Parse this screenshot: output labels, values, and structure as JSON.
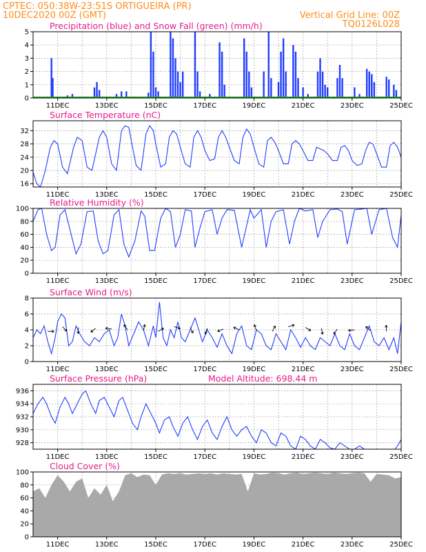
{
  "header": {
    "line1_left": "CPTEC:   050:38W-23:51S   ORTIGUEIRA (PR)",
    "line2_left": "10DEC2020 00Z (GMT)",
    "line2_right": "Vertical Grid Line: 00Z",
    "line3_right": "TQ0126L028"
  },
  "colors": {
    "precip": "#1f3cff",
    "snow": "#1aa51a",
    "line": "#1f3cff",
    "cloud": "#a9a9a9",
    "title": "#e8198b",
    "header": "#ff8c1a"
  },
  "x_axis": {
    "labels": [
      "11DEC",
      "13DEC",
      "15DEC",
      "17DEC",
      "19DEC",
      "21DEC",
      "23DEC",
      "25DEC"
    ],
    "label_days": [
      11,
      13,
      15,
      17,
      19,
      21,
      23,
      25
    ],
    "range_days": [
      10,
      25
    ],
    "gridline_days": [
      11,
      12,
      13,
      14,
      15,
      16,
      17,
      18,
      19,
      20,
      21,
      22,
      23,
      24
    ]
  },
  "chart_data": [
    {
      "type": "bar",
      "title": "Precipitation (blue) and Snow Fall (green) (mm/h)",
      "ylim": [
        0,
        5
      ],
      "yticks": [
        0,
        1,
        2,
        3,
        4,
        5
      ],
      "series": [
        {
          "name": "Precipitation",
          "values": [
            [
              10.75,
              3.0
            ],
            [
              10.8,
              1.5
            ],
            [
              11.4,
              0.2
            ],
            [
              11.6,
              0.3
            ],
            [
              12.05,
              0.1
            ],
            [
              12.5,
              0.8
            ],
            [
              12.6,
              1.2
            ],
            [
              12.7,
              0.6
            ],
            [
              13.4,
              0.3
            ],
            [
              13.6,
              0.5
            ],
            [
              13.8,
              0.5
            ],
            [
              14.7,
              0.4
            ],
            [
              14.8,
              5.0
            ],
            [
              14.9,
              3.5
            ],
            [
              15.0,
              0.8
            ],
            [
              15.1,
              0.5
            ],
            [
              15.6,
              5.0
            ],
            [
              15.7,
              4.5
            ],
            [
              15.8,
              3.0
            ],
            [
              15.9,
              2.0
            ],
            [
              16.0,
              1.2
            ],
            [
              16.1,
              2.0
            ],
            [
              16.6,
              5.0
            ],
            [
              16.7,
              2.0
            ],
            [
              16.8,
              0.5
            ],
            [
              17.2,
              0.3
            ],
            [
              17.6,
              4.2
            ],
            [
              17.7,
              3.5
            ],
            [
              17.8,
              1.0
            ],
            [
              18.6,
              4.5
            ],
            [
              18.7,
              3.5
            ],
            [
              18.8,
              2.0
            ],
            [
              18.9,
              0.8
            ],
            [
              19.4,
              2.0
            ],
            [
              19.6,
              5.0
            ],
            [
              19.7,
              1.5
            ],
            [
              20.0,
              1.2
            ],
            [
              20.1,
              3.5
            ],
            [
              20.2,
              4.5
            ],
            [
              20.3,
              2.0
            ],
            [
              20.6,
              4.0
            ],
            [
              20.7,
              3.5
            ],
            [
              20.8,
              1.5
            ],
            [
              21.0,
              0.8
            ],
            [
              21.2,
              0.3
            ],
            [
              21.6,
              2.0
            ],
            [
              21.7,
              3.0
            ],
            [
              21.8,
              2.0
            ],
            [
              21.9,
              1.0
            ],
            [
              22.0,
              0.8
            ],
            [
              22.4,
              1.5
            ],
            [
              22.5,
              2.5
            ],
            [
              22.6,
              1.5
            ],
            [
              23.1,
              0.8
            ],
            [
              23.3,
              0.3
            ],
            [
              23.6,
              2.2
            ],
            [
              23.7,
              2.0
            ],
            [
              23.8,
              1.8
            ],
            [
              23.9,
              1.2
            ],
            [
              24.4,
              1.6
            ],
            [
              24.5,
              1.4
            ],
            [
              24.7,
              1.0
            ],
            [
              24.8,
              0.6
            ]
          ]
        },
        {
          "name": "Snow Fall",
          "values": []
        }
      ]
    },
    {
      "type": "line",
      "title": "Surface Temperature (nC)",
      "ylim": [
        15,
        35
      ],
      "yticks": [
        16,
        20,
        24,
        28,
        32
      ],
      "x": [
        10.0,
        10.15,
        10.3,
        10.5,
        10.7,
        10.85,
        11.0,
        11.2,
        11.4,
        11.65,
        11.8,
        12.0,
        12.2,
        12.4,
        12.7,
        12.85,
        13.0,
        13.2,
        13.4,
        13.6,
        13.75,
        13.9,
        14.0,
        14.2,
        14.4,
        14.6,
        14.75,
        14.9,
        15.0,
        15.2,
        15.4,
        15.55,
        15.7,
        15.85,
        16.0,
        16.2,
        16.4,
        16.55,
        16.7,
        16.85,
        17.0,
        17.2,
        17.4,
        17.55,
        17.7,
        17.85,
        18.0,
        18.2,
        18.4,
        18.55,
        18.7,
        18.85,
        19.0,
        19.2,
        19.4,
        19.55,
        19.7,
        19.85,
        20.0,
        20.2,
        20.4,
        20.55,
        20.7,
        20.85,
        21.0,
        21.2,
        21.4,
        21.55,
        21.7,
        21.85,
        22.0,
        22.2,
        22.4,
        22.55,
        22.7,
        22.85,
        23.0,
        23.2,
        23.4,
        23.55,
        23.7,
        23.85,
        24.0,
        24.2,
        24.4,
        24.55,
        24.7,
        24.85,
        25.0
      ],
      "y": [
        19.5,
        16.0,
        15.0,
        20.0,
        27.0,
        29.0,
        28.0,
        21.0,
        19.0,
        27.0,
        30.0,
        29.0,
        21.0,
        20.0,
        30.0,
        32.0,
        30.0,
        22.0,
        20.0,
        32.0,
        33.5,
        33.0,
        29.0,
        21.5,
        20.0,
        31.0,
        33.5,
        32.0,
        28.0,
        21.0,
        22.0,
        30.0,
        32.0,
        31.0,
        27.0,
        22.0,
        21.0,
        30.0,
        32.0,
        30.0,
        26.0,
        23.0,
        23.5,
        30.0,
        32.0,
        30.0,
        27.0,
        23.0,
        22.0,
        30.0,
        32.5,
        31.0,
        27.0,
        22.0,
        21.0,
        29.0,
        30.0,
        28.5,
        26.0,
        22.0,
        22.0,
        28.0,
        29.0,
        28.0,
        26.0,
        23.0,
        23.0,
        27.0,
        26.5,
        26.0,
        25.0,
        23.0,
        23.0,
        27.0,
        27.5,
        26.0,
        23.0,
        21.5,
        22.0,
        26.0,
        28.5,
        28.0,
        25.0,
        21.0,
        21.0,
        27.5,
        28.5,
        27.0,
        24.0
      ]
    },
    {
      "type": "line",
      "title": "Relative Humidity (%)",
      "ylim": [
        0,
        100
      ],
      "yticks": [
        0,
        20,
        40,
        60,
        80,
        100
      ],
      "x": [
        10.0,
        10.2,
        10.35,
        10.55,
        10.75,
        10.9,
        11.1,
        11.3,
        11.55,
        11.75,
        11.95,
        12.2,
        12.45,
        12.65,
        12.85,
        13.05,
        13.3,
        13.5,
        13.7,
        13.9,
        14.15,
        14.4,
        14.55,
        14.75,
        14.95,
        15.2,
        15.4,
        15.6,
        15.8,
        16.0,
        16.2,
        16.45,
        16.6,
        16.8,
        17.0,
        17.3,
        17.5,
        17.7,
        17.9,
        18.2,
        18.5,
        18.65,
        18.85,
        19.0,
        19.3,
        19.5,
        19.7,
        19.9,
        20.2,
        20.45,
        20.65,
        20.85,
        21.1,
        21.4,
        21.6,
        21.8,
        22.1,
        22.4,
        22.6,
        22.8,
        23.1,
        23.4,
        23.6,
        23.8,
        24.1,
        24.4,
        24.65,
        24.85,
        25.0
      ],
      "y": [
        80,
        98,
        100,
        60,
        35,
        40,
        90,
        98,
        60,
        30,
        45,
        95,
        96,
        50,
        30,
        35,
        90,
        98,
        45,
        25,
        50,
        96,
        88,
        35,
        35,
        85,
        100,
        95,
        40,
        60,
        98,
        96,
        40,
        70,
        95,
        98,
        60,
        85,
        98,
        97,
        40,
        65,
        98,
        85,
        98,
        40,
        80,
        95,
        98,
        45,
        80,
        100,
        96,
        98,
        55,
        80,
        98,
        99,
        95,
        45,
        98,
        99,
        100,
        60,
        98,
        100,
        55,
        40,
        90
      ]
    },
    {
      "type": "line",
      "title": "Surface Wind (m/s)",
      "ylim": [
        0,
        8
      ],
      "yticks": [
        0,
        2,
        4,
        6,
        8
      ],
      "x": [
        10.0,
        10.15,
        10.3,
        10.45,
        10.6,
        10.75,
        10.9,
        11.0,
        11.15,
        11.3,
        11.45,
        11.6,
        11.75,
        11.9,
        12.1,
        12.3,
        12.5,
        12.7,
        12.9,
        13.1,
        13.3,
        13.45,
        13.6,
        13.75,
        13.9,
        14.1,
        14.3,
        14.5,
        14.7,
        14.9,
        15.0,
        15.15,
        15.3,
        15.45,
        15.6,
        15.75,
        15.9,
        16.05,
        16.2,
        16.4,
        16.6,
        16.75,
        16.9,
        17.1,
        17.3,
        17.5,
        17.7,
        17.9,
        18.1,
        18.3,
        18.5,
        18.7,
        18.9,
        19.1,
        19.3,
        19.5,
        19.7,
        19.9,
        20.1,
        20.3,
        20.5,
        20.7,
        20.9,
        21.1,
        21.3,
        21.5,
        21.7,
        21.9,
        22.1,
        22.3,
        22.5,
        22.7,
        22.9,
        23.1,
        23.3,
        23.5,
        23.7,
        23.9,
        24.1,
        24.3,
        24.5,
        24.7,
        24.85,
        25.0
      ],
      "y": [
        3.0,
        4.0,
        3.5,
        4.5,
        2.5,
        1.0,
        3.0,
        5.0,
        6.0,
        5.5,
        2.0,
        2.5,
        4.5,
        3.5,
        2.5,
        2.0,
        3.0,
        2.5,
        3.5,
        4.0,
        2.0,
        3.0,
        6.0,
        4.5,
        2.0,
        3.5,
        5.0,
        4.0,
        2.0,
        4.5,
        3.0,
        7.5,
        3.0,
        2.0,
        4.0,
        3.0,
        5.0,
        3.0,
        2.5,
        4.0,
        5.5,
        4.0,
        2.5,
        4.0,
        3.0,
        1.8,
        3.5,
        2.0,
        1.0,
        3.5,
        4.5,
        2.0,
        1.5,
        4.0,
        3.5,
        2.0,
        1.5,
        3.5,
        2.5,
        1.5,
        4.0,
        3.0,
        1.8,
        3.0,
        2.0,
        1.5,
        3.0,
        2.5,
        2.0,
        3.5,
        2.0,
        1.5,
        3.5,
        2.0,
        1.5,
        3.0,
        4.5,
        2.5,
        2.0,
        3.0,
        1.5,
        3.0,
        1.0,
        5.0
      ]
    },
    {
      "type": "line",
      "title": "Surface Pressure (hPa)",
      "subtitle": "Model Altitude: 698.44 m",
      "ylim": [
        927,
        937
      ],
      "yticks": [
        928,
        930,
        932,
        934,
        936
      ],
      "x": [
        10.0,
        10.2,
        10.4,
        10.55,
        10.75,
        10.9,
        11.1,
        11.3,
        11.45,
        11.6,
        11.8,
        12.0,
        12.15,
        12.35,
        12.55,
        12.7,
        12.9,
        13.1,
        13.3,
        13.5,
        13.65,
        13.85,
        14.05,
        14.25,
        14.4,
        14.6,
        14.8,
        15.0,
        15.15,
        15.35,
        15.55,
        15.7,
        15.9,
        16.1,
        16.3,
        16.5,
        16.7,
        16.9,
        17.1,
        17.3,
        17.5,
        17.7,
        17.9,
        18.1,
        18.3,
        18.5,
        18.7,
        18.9,
        19.1,
        19.3,
        19.5,
        19.7,
        19.9,
        20.1,
        20.3,
        20.5,
        20.7,
        20.9,
        21.1,
        21.3,
        21.5,
        21.7,
        21.9,
        22.1,
        22.3,
        22.5,
        22.7,
        22.9,
        23.1,
        23.3,
        23.5,
        23.7,
        23.9,
        24.1,
        24.3,
        24.5,
        24.7,
        24.85,
        25.0
      ],
      "y": [
        932.5,
        934,
        935,
        934,
        932,
        931,
        933.5,
        935,
        934,
        932.5,
        934,
        935.5,
        936,
        934,
        932.5,
        934.5,
        935,
        933.5,
        932,
        934.5,
        935,
        933,
        931,
        930,
        932,
        934,
        932.5,
        931,
        929.5,
        931.5,
        932,
        930.5,
        929,
        931,
        932,
        930,
        928.5,
        930.5,
        931.5,
        929.5,
        928.5,
        930.5,
        932,
        930,
        929,
        930,
        930.5,
        929,
        928,
        930,
        929.5,
        928,
        927.5,
        929.5,
        929,
        927.5,
        927,
        929,
        928.5,
        927.5,
        927,
        928.5,
        928,
        927.2,
        927,
        928,
        927.5,
        927,
        927,
        927.5,
        927,
        926.5,
        927,
        926.8,
        926.5,
        927,
        926.8,
        927.5,
        928.5
      ]
    },
    {
      "type": "area",
      "title": "Cloud Cover (%)",
      "ylim": [
        0,
        100
      ],
      "yticks": [
        0,
        20,
        40,
        60,
        80,
        100
      ],
      "x": [
        10.0,
        10.25,
        10.5,
        10.75,
        11.0,
        11.25,
        11.5,
        11.75,
        12.0,
        12.25,
        12.5,
        12.75,
        13.0,
        13.25,
        13.5,
        13.75,
        14.0,
        14.25,
        14.5,
        14.75,
        15.0,
        15.25,
        15.5,
        15.75,
        16.0,
        16.25,
        16.5,
        16.75,
        17.0,
        17.25,
        17.5,
        17.75,
        18.0,
        18.25,
        18.5,
        18.75,
        19.0,
        19.25,
        19.5,
        19.75,
        20.0,
        20.25,
        20.5,
        20.75,
        21.0,
        21.25,
        21.5,
        21.75,
        22.0,
        22.25,
        22.5,
        22.75,
        23.0,
        23.25,
        23.5,
        23.75,
        24.0,
        24.25,
        24.5,
        24.75,
        25.0
      ],
      "y": [
        70,
        75,
        60,
        80,
        95,
        85,
        70,
        85,
        90,
        60,
        75,
        65,
        80,
        55,
        70,
        95,
        98,
        92,
        96,
        95,
        80,
        96,
        98,
        97,
        98,
        96,
        97,
        98,
        97,
        98,
        96,
        98,
        97,
        96,
        97,
        70,
        98,
        96,
        97,
        99,
        98,
        96,
        98,
        99,
        97,
        98,
        99,
        98,
        97,
        99,
        98,
        97,
        98,
        99,
        98,
        85,
        97,
        96,
        95,
        90,
        92
      ]
    }
  ]
}
